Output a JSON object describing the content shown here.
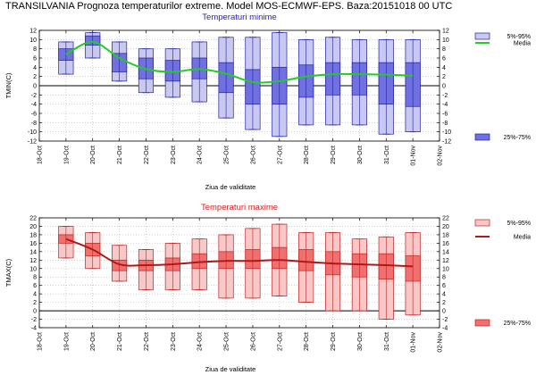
{
  "title": "TRANSILVANIA  Prognoza temperaturilor extreme.  Model MOS-ECMWF-EPS. Baza:20151018 00 UTC",
  "chart_data": [
    {
      "type": "box",
      "title": "Temperaturi minime",
      "ylabel": "TMIN(C)",
      "xlabel": "Ziua de validitate",
      "ylim": [
        -12,
        12
      ],
      "ytick_step": 2,
      "x_ticks": [
        "18-Oct",
        "19-Oct",
        "20-Oct",
        "21-Oct",
        "22-Oct",
        "23-Oct",
        "24-Oct",
        "25-Oct",
        "26-Oct",
        "27-Oct",
        "28-Oct",
        "29-Oct",
        "30-Oct",
        "31-Oct",
        "01-Nov",
        "02-Nov"
      ],
      "grid": true,
      "legend": {
        "placement": "right",
        "range_label": "5%-95%",
        "mean_label": "Media",
        "iqr_label": "25%-75%"
      },
      "colors": {
        "title": "#1f1fd0",
        "fill_light": "#c8c8f0",
        "fill_iqr": "#7070e0",
        "edge": "#2020a0",
        "mean": "#22cc22"
      },
      "series": [
        {
          "date": "19-Oct",
          "p5": 2.5,
          "p25": 5.5,
          "p75": 8.0,
          "p95": 9.5,
          "mean": 6.8
        },
        {
          "date": "20-Oct",
          "p5": 6.0,
          "p25": 8.8,
          "p75": 10.8,
          "p95": 11.5,
          "mean": 9.5
        },
        {
          "date": "21-Oct",
          "p5": 1.0,
          "p25": 3.0,
          "p75": 7.0,
          "p95": 9.5,
          "mean": 6.0
        },
        {
          "date": "22-Oct",
          "p5": -1.5,
          "p25": 1.5,
          "p75": 6.0,
          "p95": 8.0,
          "mean": 3.6
        },
        {
          "date": "23-Oct",
          "p5": -2.5,
          "p25": 1.0,
          "p75": 5.5,
          "p95": 8.0,
          "mean": 3.0
        },
        {
          "date": "24-Oct",
          "p5": -3.5,
          "p25": 1.5,
          "p75": 6.0,
          "p95": 9.5,
          "mean": 3.6
        },
        {
          "date": "25-Oct",
          "p5": -7.0,
          "p25": -1.5,
          "p75": 5.0,
          "p95": 10.5,
          "mean": 2.6
        },
        {
          "date": "26-Oct",
          "p5": -9.5,
          "p25": -4.0,
          "p75": 3.5,
          "p95": 10.5,
          "mean": 0.8
        },
        {
          "date": "27-Oct",
          "p5": -11.0,
          "p25": -4.0,
          "p75": 4.0,
          "p95": 11.5,
          "mean": 1.0
        },
        {
          "date": "28-Oct",
          "p5": -8.5,
          "p25": -2.5,
          "p75": 4.5,
          "p95": 10.0,
          "mean": 2.0
        },
        {
          "date": "29-Oct",
          "p5": -8.5,
          "p25": -2.0,
          "p75": 5.0,
          "p95": 10.5,
          "mean": 2.5
        },
        {
          "date": "30-Oct",
          "p5": -8.5,
          "p25": -2.0,
          "p75": 5.0,
          "p95": 10.0,
          "mean": 2.5
        },
        {
          "date": "31-Oct",
          "p5": -10.5,
          "p25": -4.0,
          "p75": 5.0,
          "p95": 10.0,
          "mean": 2.4
        },
        {
          "date": "01-Nov",
          "p5": -10.0,
          "p25": -4.5,
          "p75": 5.0,
          "p95": 10.0,
          "mean": 2.2
        }
      ]
    },
    {
      "type": "box",
      "title": "Temperaturi maxime",
      "ylabel": "TMAX(C)",
      "xlabel": "Ziua de validitate",
      "ylim": [
        -4,
        22
      ],
      "ytick_step": 2,
      "x_ticks": [
        "18-Oct",
        "19-Oct",
        "20-Oct",
        "21-Oct",
        "22-Oct",
        "23-Oct",
        "24-Oct",
        "25-Oct",
        "26-Oct",
        "27-Oct",
        "28-Oct",
        "29-Oct",
        "30-Oct",
        "31-Oct",
        "01-Nov",
        "02-Nov"
      ],
      "grid": true,
      "legend": {
        "placement": "right",
        "range_label": "5%-95%",
        "mean_label": "Media",
        "iqr_label": "25%-75%"
      },
      "colors": {
        "title": "#d01f1f",
        "fill_light": "#f7c8c8",
        "fill_iqr": "#f07070",
        "edge": "#c02020",
        "mean": "#b01818"
      },
      "series": [
        {
          "date": "19-Oct",
          "p5": 12.5,
          "p25": 16.0,
          "p75": 18.0,
          "p95": 20.0,
          "mean": 17.0
        },
        {
          "date": "20-Oct",
          "p5": 10.0,
          "p25": 13.0,
          "p75": 16.0,
          "p95": 18.5,
          "mean": 14.5
        },
        {
          "date": "21-Oct",
          "p5": 7.0,
          "p25": 9.5,
          "p75": 12.0,
          "p95": 15.5,
          "mean": 11.0
        },
        {
          "date": "22-Oct",
          "p5": 5.0,
          "p25": 9.5,
          "p75": 12.0,
          "p95": 14.5,
          "mean": 10.8
        },
        {
          "date": "23-Oct",
          "p5": 5.0,
          "p25": 9.5,
          "p75": 12.5,
          "p95": 16.0,
          "mean": 11.0
        },
        {
          "date": "24-Oct",
          "p5": 5.0,
          "p25": 10.0,
          "p75": 13.5,
          "p95": 17.0,
          "mean": 11.5
        },
        {
          "date": "25-Oct",
          "p5": 3.0,
          "p25": 10.0,
          "p75": 14.0,
          "p95": 18.0,
          "mean": 11.8
        },
        {
          "date": "26-Oct",
          "p5": 3.0,
          "p25": 10.0,
          "p75": 14.5,
          "p95": 19.5,
          "mean": 11.8
        },
        {
          "date": "27-Oct",
          "p5": 3.5,
          "p25": 10.0,
          "p75": 15.0,
          "p95": 20.5,
          "mean": 12.0
        },
        {
          "date": "28-Oct",
          "p5": 2.0,
          "p25": 9.5,
          "p75": 14.5,
          "p95": 18.5,
          "mean": 11.6
        },
        {
          "date": "29-Oct",
          "p5": 0.0,
          "p25": 8.5,
          "p75": 14.0,
          "p95": 18.5,
          "mean": 11.2
        },
        {
          "date": "30-Oct",
          "p5": 0.0,
          "p25": 8.0,
          "p75": 13.5,
          "p95": 17.0,
          "mean": 11.0
        },
        {
          "date": "31-Oct",
          "p5": -2.0,
          "p25": 7.5,
          "p75": 13.5,
          "p95": 17.5,
          "mean": 10.8
        },
        {
          "date": "01-Nov",
          "p5": -1.0,
          "p25": 7.0,
          "p75": 13.0,
          "p95": 18.5,
          "mean": 10.5
        }
      ]
    }
  ]
}
